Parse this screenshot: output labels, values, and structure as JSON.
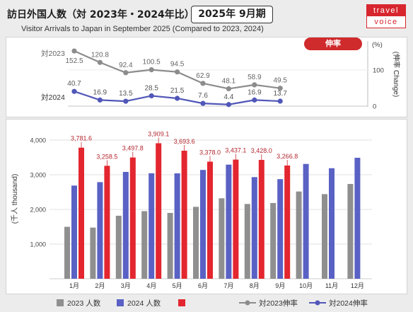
{
  "header": {
    "title": "訪日外国人数（対 2023年・2024年比）",
    "period": "2025年 9月期",
    "subtitle": "Visitor Arrivals to Japan in September 2025 (Compared to 2023, 2024)"
  },
  "logo": {
    "top": "travel",
    "bottom": "voice",
    "color": "#d7262e"
  },
  "chart_data": [
    {
      "type": "line",
      "badge": "伸率",
      "x": [
        1,
        2,
        3,
        4,
        5,
        6,
        7,
        8,
        9
      ],
      "series": [
        {
          "name": "対2023",
          "legend_label": "対2023伸率",
          "color": "#8c8c8c",
          "values": [
            152.5,
            120.8,
            92.4,
            100.5,
            94.5,
            62.9,
            48.1,
            58.9,
            49.5
          ]
        },
        {
          "name": "対2024",
          "legend_label": "対2024伸率",
          "color": "#5157b8",
          "values": [
            40.7,
            16.9,
            13.5,
            28.5,
            21.5,
            7.6,
            4.4,
            16.9,
            13.7
          ]
        }
      ],
      "yunit": "(%)",
      "ylabel": "(伸率 Change)",
      "yticks": [
        0,
        100
      ],
      "ylim": [
        0,
        180
      ],
      "grid": false
    },
    {
      "type": "bar",
      "categories": [
        "1月",
        "2月",
        "3月",
        "4月",
        "5月",
        "6月",
        "7月",
        "8月",
        "9月",
        "10月",
        "11月",
        "12月"
      ],
      "series": [
        {
          "name": "2023 人数",
          "color": "#8f8f8f",
          "values": [
            1498,
            1476,
            1818,
            1950,
            1899,
            2074,
            2321,
            2157,
            2185,
            2517,
            2441,
            2734
          ]
        },
        {
          "name": "2024 人数",
          "color": "#5a61c4",
          "values": [
            2688,
            2787,
            3082,
            3042,
            3040,
            3139,
            3292,
            2932,
            2873,
            3312,
            3188,
            3490
          ]
        },
        {
          "color": "#e3262f",
          "show_data_labels": true,
          "values": [
            3781.6,
            3258.5,
            3497.8,
            3909.1,
            3693.6,
            3378.0,
            3437.1,
            3428.0,
            3266.8,
            null,
            null,
            null
          ]
        }
      ],
      "ylabel": "(千人 thousand)",
      "yticks": [
        1000,
        2000,
        3000,
        4000
      ],
      "ylim": [
        0,
        4300
      ],
      "grid": true,
      "legend": "bottom"
    }
  ]
}
